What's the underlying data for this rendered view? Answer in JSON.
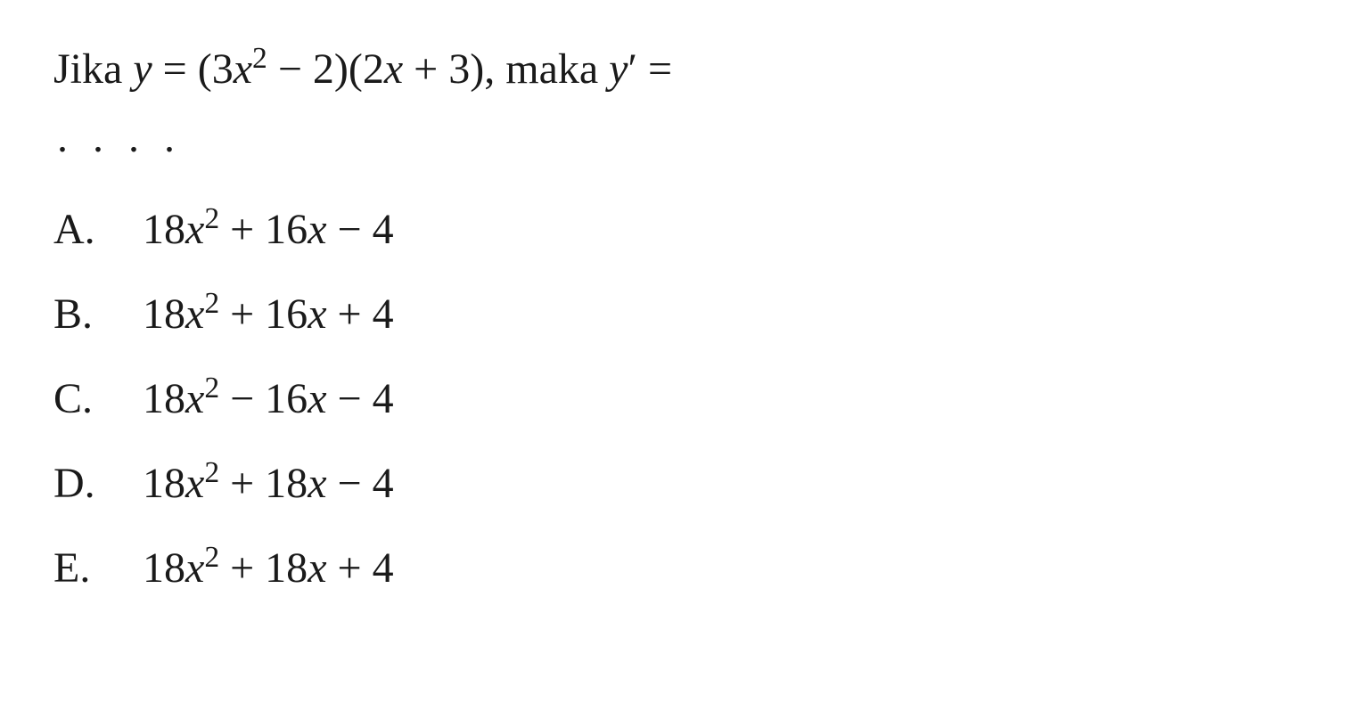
{
  "question": {
    "stem_prefix": "Jika ",
    "stem_var_y": "y",
    "stem_eq1": " = (3",
    "stem_var_x1": "x",
    "stem_exp1": "2",
    "stem_mid1": " − 2)(2",
    "stem_var_x2": "x",
    "stem_mid2": " + 3), maka ",
    "stem_var_yprime": "y",
    "stem_prime": "′",
    "stem_eq2": " =",
    "dots": ". . . ."
  },
  "options": [
    {
      "letter": "A.",
      "coef1": "18",
      "var1": "x",
      "exp1": "2",
      "op1": " + 16",
      "var2": "x",
      "op2": " − 4"
    },
    {
      "letter": "B.",
      "coef1": "18",
      "var1": "x",
      "exp1": "2",
      "op1": " + 16",
      "var2": "x",
      "op2": " + 4"
    },
    {
      "letter": "C.",
      "coef1": "18",
      "var1": "x",
      "exp1": "2",
      "op1": " − 16",
      "var2": "x",
      "op2": " − 4"
    },
    {
      "letter": "D.",
      "coef1": "18",
      "var1": "x",
      "exp1": "2",
      "op1": " + 18",
      "var2": "x",
      "op2": " − 4"
    },
    {
      "letter": "E.",
      "coef1": "18",
      "var1": "x",
      "exp1": "2",
      "op1": " + 18",
      "var2": "x",
      "op2": " + 4"
    }
  ],
  "styling": {
    "background_color": "#ffffff",
    "text_color": "#1a1a1a",
    "font_family": "Times New Roman",
    "stem_fontsize": 48,
    "option_fontsize": 48,
    "option_letter_width": 100,
    "option_gap": 28
  }
}
